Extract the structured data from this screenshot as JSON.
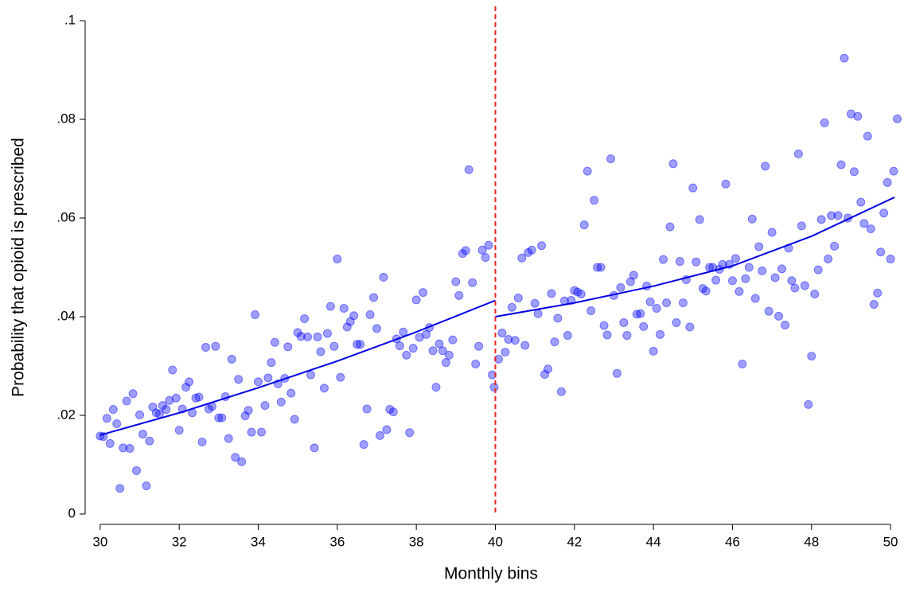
{
  "chart_data": {
    "type": "scatter",
    "x_label": "Monthly bins",
    "y_label": "Probability that opioid is prescribed",
    "xlim": [
      29.62,
      50.2
    ],
    "ylim": [
      0,
      0.1
    ],
    "xticks": [
      30,
      32,
      34,
      36,
      38,
      40,
      42,
      44,
      46,
      48,
      50
    ],
    "yticks": [
      0,
      {
        "value": 0.02,
        "label": ".02"
      },
      {
        "value": 0.04,
        "label": ".04"
      },
      {
        "value": 0.06,
        "label": ".06"
      },
      {
        "value": 0.08,
        "label": ".08"
      },
      {
        "value": 0.1,
        "label": ".1"
      }
    ],
    "cutoff": 40,
    "cutoff_color": "#e8261c",
    "points": {
      "color": "#0000ff",
      "x": [
        30,
        30.08,
        30.17,
        30.25,
        30.33,
        30.42,
        30.5,
        30.58,
        30.67,
        30.75,
        30.83,
        30.92,
        31,
        31.08,
        31.17,
        31.25,
        31.33,
        31.42,
        31.5,
        31.58,
        31.67,
        31.75,
        31.83,
        31.92,
        32,
        32.08,
        32.17,
        32.25,
        32.33,
        32.42,
        32.5,
        32.58,
        32.67,
        32.75,
        32.83,
        32.92,
        33,
        33.08,
        33.17,
        33.25,
        33.33,
        33.42,
        33.5,
        33.58,
        33.67,
        33.75,
        33.83,
        33.92,
        34,
        34.08,
        34.17,
        34.25,
        34.33,
        34.42,
        34.5,
        34.58,
        34.67,
        34.75,
        34.83,
        34.92,
        35,
        35.08,
        35.17,
        35.25,
        35.33,
        35.42,
        35.5,
        35.58,
        35.67,
        35.75,
        35.83,
        35.92,
        36,
        36.08,
        36.17,
        36.25,
        36.33,
        36.42,
        36.5,
        36.58,
        36.67,
        36.75,
        36.83,
        36.92,
        37,
        37.08,
        37.17,
        37.25,
        37.33,
        37.42,
        37.5,
        37.58,
        37.67,
        37.75,
        37.83,
        37.92,
        38,
        38.08,
        38.17,
        38.25,
        38.33,
        38.42,
        38.5,
        38.58,
        38.67,
        38.75,
        38.83,
        38.92,
        39,
        39.08,
        39.17,
        39.25,
        39.33,
        39.42,
        39.5,
        39.58,
        39.67,
        39.75,
        39.83,
        39.92,
        39.97,
        40.08,
        40.17,
        40.25,
        40.33,
        40.42,
        40.5,
        40.58,
        40.67,
        40.75,
        40.83,
        40.92,
        41,
        41.08,
        41.17,
        41.25,
        41.33,
        41.42,
        41.5,
        41.58,
        41.67,
        41.75,
        41.83,
        41.92,
        42,
        42.08,
        42.17,
        42.25,
        42.33,
        42.42,
        42.5,
        42.58,
        42.67,
        42.75,
        42.83,
        42.92,
        43,
        43.08,
        43.17,
        43.25,
        43.33,
        43.42,
        43.5,
        43.58,
        43.67,
        43.75,
        43.83,
        43.92,
        44,
        44.08,
        44.17,
        44.25,
        44.33,
        44.42,
        44.5,
        44.58,
        44.67,
        44.75,
        44.83,
        44.92,
        45,
        45.08,
        45.17,
        45.25,
        45.33,
        45.42,
        45.5,
        45.58,
        45.67,
        45.75,
        45.83,
        45.92,
        46,
        46.08,
        46.17,
        46.25,
        46.33,
        46.42,
        46.5,
        46.58,
        46.67,
        46.75,
        46.83,
        46.92,
        47,
        47.08,
        47.17,
        47.25,
        47.33,
        47.42,
        47.5,
        47.58,
        47.67,
        47.75,
        47.83,
        47.92,
        48,
        48.08,
        48.17,
        48.25,
        48.33,
        48.42,
        48.5,
        48.58,
        48.67,
        48.75,
        48.83,
        48.92,
        49,
        49.08,
        49.17,
        49.25,
        49.33,
        49.42,
        49.5,
        49.58,
        49.67,
        49.75,
        49.83,
        49.92,
        50,
        50.08,
        50.17
      ],
      "y": [
        0.0158,
        0.0157,
        0.0194,
        0.0143,
        0.0212,
        0.0183,
        0.0052,
        0.0134,
        0.0229,
        0.0133,
        0.0244,
        0.0088,
        0.0201,
        0.0162,
        0.0057,
        0.0148,
        0.0217,
        0.0205,
        0.0203,
        0.022,
        0.0212,
        0.023,
        0.0292,
        0.0235,
        0.017,
        0.0213,
        0.0257,
        0.0268,
        0.0205,
        0.0235,
        0.0237,
        0.0146,
        0.0338,
        0.0213,
        0.0218,
        0.034,
        0.0195,
        0.0195,
        0.0238,
        0.0153,
        0.0314,
        0.0115,
        0.0273,
        0.0106,
        0.0199,
        0.021,
        0.0166,
        0.0404,
        0.0268,
        0.0166,
        0.022,
        0.0276,
        0.0307,
        0.0348,
        0.0264,
        0.0227,
        0.0275,
        0.0339,
        0.0245,
        0.0192,
        0.0368,
        0.036,
        0.0396,
        0.0359,
        0.0282,
        0.0134,
        0.0359,
        0.0329,
        0.0255,
        0.0366,
        0.0421,
        0.034,
        0.0517,
        0.0277,
        0.0417,
        0.0379,
        0.039,
        0.0402,
        0.0344,
        0.0344,
        0.0141,
        0.0213,
        0.0404,
        0.0439,
        0.0376,
        0.0159,
        0.048,
        0.0171,
        0.0212,
        0.0207,
        0.0355,
        0.0341,
        0.0369,
        0.0322,
        0.0165,
        0.0336,
        0.0434,
        0.0358,
        0.0449,
        0.0364,
        0.0378,
        0.0331,
        0.0257,
        0.0345,
        0.0331,
        0.0307,
        0.0322,
        0.0353,
        0.0471,
        0.0443,
        0.0528,
        0.0534,
        0.0698,
        0.0469,
        0.0304,
        0.034,
        0.0535,
        0.052,
        0.0545,
        0.0282,
        0.0257,
        0.0314,
        0.0367,
        0.0328,
        0.0354,
        0.0419,
        0.0352,
        0.0438,
        0.0519,
        0.0342,
        0.053,
        0.0535,
        0.0427,
        0.0406,
        0.0544,
        0.0283,
        0.0294,
        0.0447,
        0.0349,
        0.0397,
        0.0248,
        0.0432,
        0.0362,
        0.0433,
        0.0453,
        0.045,
        0.0446,
        0.0586,
        0.0695,
        0.0412,
        0.0636,
        0.05,
        0.05,
        0.0382,
        0.0363,
        0.072,
        0.0443,
        0.0285,
        0.0459,
        0.0388,
        0.0362,
        0.0471,
        0.0484,
        0.0405,
        0.0406,
        0.038,
        0.0462,
        0.043,
        0.033,
        0.0417,
        0.0364,
        0.0516,
        0.0428,
        0.0582,
        0.071,
        0.0388,
        0.0512,
        0.0428,
        0.0475,
        0.0379,
        0.0661,
        0.0511,
        0.0597,
        0.0457,
        0.0452,
        0.05,
        0.05,
        0.0474,
        0.0496,
        0.0506,
        0.0669,
        0.0506,
        0.0473,
        0.0518,
        0.0451,
        0.0304,
        0.0477,
        0.05,
        0.0598,
        0.0437,
        0.0542,
        0.0493,
        0.0705,
        0.0411,
        0.0571,
        0.0479,
        0.0401,
        0.0497,
        0.0383,
        0.0539,
        0.0473,
        0.0458,
        0.073,
        0.0584,
        0.0463,
        0.0222,
        0.032,
        0.0446,
        0.0495,
        0.0597,
        0.0793,
        0.0517,
        0.0605,
        0.0543,
        0.0605,
        0.0708,
        0.0924,
        0.06,
        0.0811,
        0.0694,
        0.0806,
        0.0632,
        0.0589,
        0.0766,
        0.0578,
        0.0425,
        0.0448,
        0.0531,
        0.061,
        0.0672,
        0.0517,
        0.0695,
        0.0801
      ]
    },
    "fit_lines": [
      {
        "color": "#0000e6",
        "x": [
          30,
          32,
          34,
          36,
          38,
          40
        ],
        "y": [
          0.016,
          0.0205,
          0.0256,
          0.031,
          0.0369,
          0.0433
        ]
      },
      {
        "color": "#0000e6",
        "x": [
          40,
          42,
          44,
          46,
          48,
          50.1
        ],
        "y": [
          0.04,
          0.0428,
          0.0462,
          0.0503,
          0.0563,
          0.0642
        ]
      }
    ]
  }
}
